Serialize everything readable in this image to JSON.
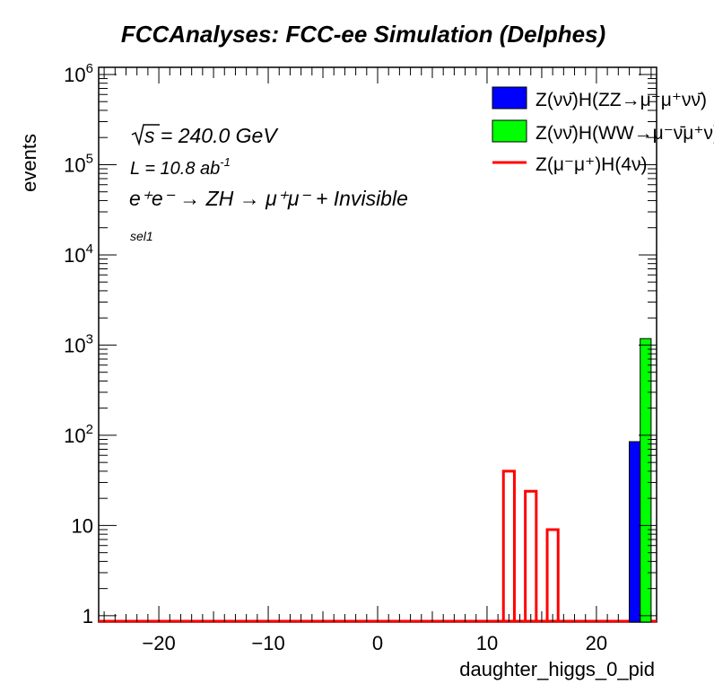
{
  "chart_data": {
    "type": "bar",
    "title": "FCCAnalyses: FCC-ee Simulation (Delphes)",
    "xlabel": "daughter_higgs_0_pid",
    "ylabel": "events",
    "xlim": [
      -25.5,
      25.5
    ],
    "ylim": [
      0.85,
      1200000
    ],
    "yscale": "log",
    "grid": false,
    "legend_position": "top-right",
    "x_ticks": [
      -20,
      -10,
      0,
      10,
      20
    ],
    "x_tick_labels": [
      "−20",
      "−10",
      "0",
      "10",
      "20"
    ],
    "y_ticks": [
      1,
      10,
      100,
      1000,
      10000,
      100000,
      1000000
    ],
    "y_tick_labels": [
      {
        "base": "1",
        "exp": ""
      },
      {
        "base": "10",
        "exp": ""
      },
      {
        "base": "10",
        "exp": "2"
      },
      {
        "base": "10",
        "exp": "3"
      },
      {
        "base": "10",
        "exp": "4"
      },
      {
        "base": "10",
        "exp": "5"
      },
      {
        "base": "10",
        "exp": "6"
      }
    ],
    "series": [
      {
        "name": "Z(νν̄)H(ZZ→μ⁻μ⁺νν̄)",
        "style": "filled",
        "color": "#0000ff",
        "bins": [
          {
            "x0": 23,
            "x1": 24,
            "value": 85
          }
        ]
      },
      {
        "name": "Z(νν̄)H(WW→μ⁻ν̄μ⁺ν)",
        "style": "filled",
        "color": "#00ff00",
        "bins": [
          {
            "x0": 24,
            "x1": 25,
            "value": 1180
          }
        ]
      },
      {
        "name": "Z(μ⁻μ⁺)H(4ν)",
        "style": "line",
        "color": "#ff0000",
        "bins": [
          {
            "x0": 11.5,
            "x1": 12.5,
            "value": 40
          },
          {
            "x0": 13.5,
            "x1": 14.5,
            "value": 24
          },
          {
            "x0": 15.5,
            "x1": 16.5,
            "value": 9
          }
        ]
      }
    ],
    "annotations": {
      "sqrt_s": "s = 240.0 GeV",
      "lumi": "L = 10.8 ab",
      "lumi_exp": "-1",
      "process": "e⁺e⁻ → ZH → μ⁺μ⁻ + Invisible",
      "selection": "sel1"
    }
  }
}
